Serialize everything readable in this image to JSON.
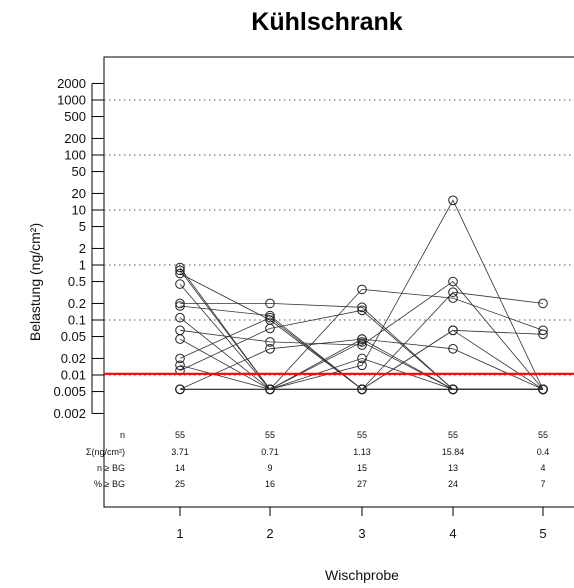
{
  "chart_data": {
    "type": "line",
    "title": "Kühlschrank",
    "xlabel": "Wischprobe",
    "ylabel": "Belastung (ng/cm²)",
    "y_scale": "log",
    "ylim": [
      0.002,
      2000
    ],
    "y_ticks": [
      "2000",
      "1000",
      "500",
      "200",
      "100",
      "50",
      "20",
      "10",
      "5",
      "2",
      "1",
      "0.5",
      "0.2",
      "0.1",
      "0.05",
      "0.02",
      "0.01",
      "0.005",
      "0.002"
    ],
    "x_ticks": [
      "1",
      "2",
      "3",
      "4",
      "5"
    ],
    "grid": "dotted horizontal at 1000, 100, 10, 1, 0.1, 0.01",
    "reference_line": {
      "value": 0.0105,
      "color": "#ff0000"
    },
    "series_color": "#333333",
    "series": [
      {
        "values": [
          0.9,
          0.0055,
          0.0055,
          0.0055,
          0.0055
        ]
      },
      {
        "values": [
          0.8,
          0.0055,
          0.04,
          0.0055,
          0.0055
        ]
      },
      {
        "values": [
          0.7,
          0.1,
          0.0055,
          0.0055,
          0.0055
        ]
      },
      {
        "values": [
          0.45,
          0.0055,
          0.02,
          0.0055,
          0.0055
        ]
      },
      {
        "values": [
          0.2,
          0.2,
          0.17,
          0.0055,
          0.0055
        ]
      },
      {
        "values": [
          0.18,
          0.12,
          0.0055,
          0.065,
          0.055
        ]
      },
      {
        "values": [
          0.11,
          0.0055,
          0.36,
          0.25,
          0.065
        ]
      },
      {
        "values": [
          0.065,
          0.04,
          0.035,
          0.5,
          0.0055
        ]
      },
      {
        "values": [
          0.045,
          0.0055,
          0.0055,
          0.0055,
          0.0055
        ]
      },
      {
        "values": [
          0.02,
          0.11,
          0.0055,
          0.065,
          0.0055
        ]
      },
      {
        "values": [
          0.015,
          0.0055,
          0.045,
          0.0055,
          0.0055
        ]
      },
      {
        "values": [
          0.012,
          0.07,
          0.15,
          0.0055,
          0.0055
        ]
      },
      {
        "values": [
          0.0055,
          0.03,
          0.045,
          0.03,
          0.0055
        ]
      },
      {
        "values": [
          0.0055,
          0.0055,
          0.015,
          15,
          0.0055
        ]
      },
      {
        "values": [
          0.0055,
          0.0055,
          0.0055,
          0.32,
          0.2
        ]
      },
      {
        "values": [
          0.0055,
          0.0055,
          0.0055,
          0.0055,
          0.0055
        ]
      }
    ],
    "summary_table": {
      "rows": [
        {
          "label": "n",
          "values": [
            "55",
            "55",
            "55",
            "55",
            "55"
          ]
        },
        {
          "label": "Σ(ng/cm²)",
          "values": [
            "3.71",
            "0.71",
            "1.13",
            "15.84",
            "0.4"
          ]
        },
        {
          "label": "n ≥ BG",
          "values": [
            "14",
            "9",
            "15",
            "13",
            "4"
          ]
        },
        {
          "label": "% ≥ BG",
          "values": [
            "25",
            "16",
            "27",
            "24",
            "7"
          ]
        }
      ]
    }
  }
}
